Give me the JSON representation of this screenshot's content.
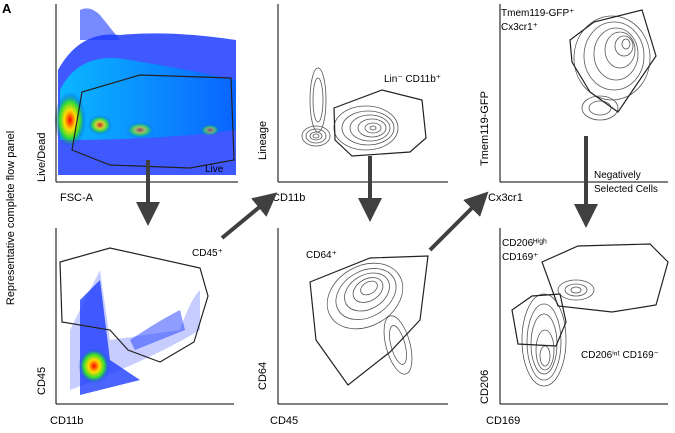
{
  "panel_letter": "A",
  "side_label": "Representative complete flow panel",
  "plots": [
    {
      "xlabel": "FSC-A",
      "ylabel": "Live/Dead",
      "gate_labels": [
        "Live"
      ]
    },
    {
      "xlabel": "CD11b",
      "ylabel": "Lineage",
      "gate_labels": [
        "Lin⁻ CD11b⁺"
      ]
    },
    {
      "xlabel": "Cx3cr1",
      "ylabel": "Tmem119-GFP",
      "gate_labels": [
        "Tmem119-GFP⁺",
        "Cx3cr1⁺"
      ]
    },
    {
      "xlabel": "CD11b",
      "ylabel": "CD45",
      "gate_labels": []
    },
    {
      "xlabel": "CD45",
      "ylabel": "CD64",
      "gate_labels": [
        "CD64⁺"
      ]
    },
    {
      "xlabel": "CD169",
      "ylabel": "CD206",
      "gate_labels": [
        "CD206ᴴⁱᵍʰ",
        "CD169⁺",
        "CD206ⁱⁿᵗ CD169⁻"
      ]
    }
  ],
  "arrow_labels": {
    "cd45_plus": "CD45⁺",
    "negatively_selected": [
      "Negatively",
      "Selected Cells"
    ]
  },
  "colors": {
    "axis": "#000000",
    "contour": "#555555",
    "arrow": "#404040",
    "gate": "#222222"
  }
}
